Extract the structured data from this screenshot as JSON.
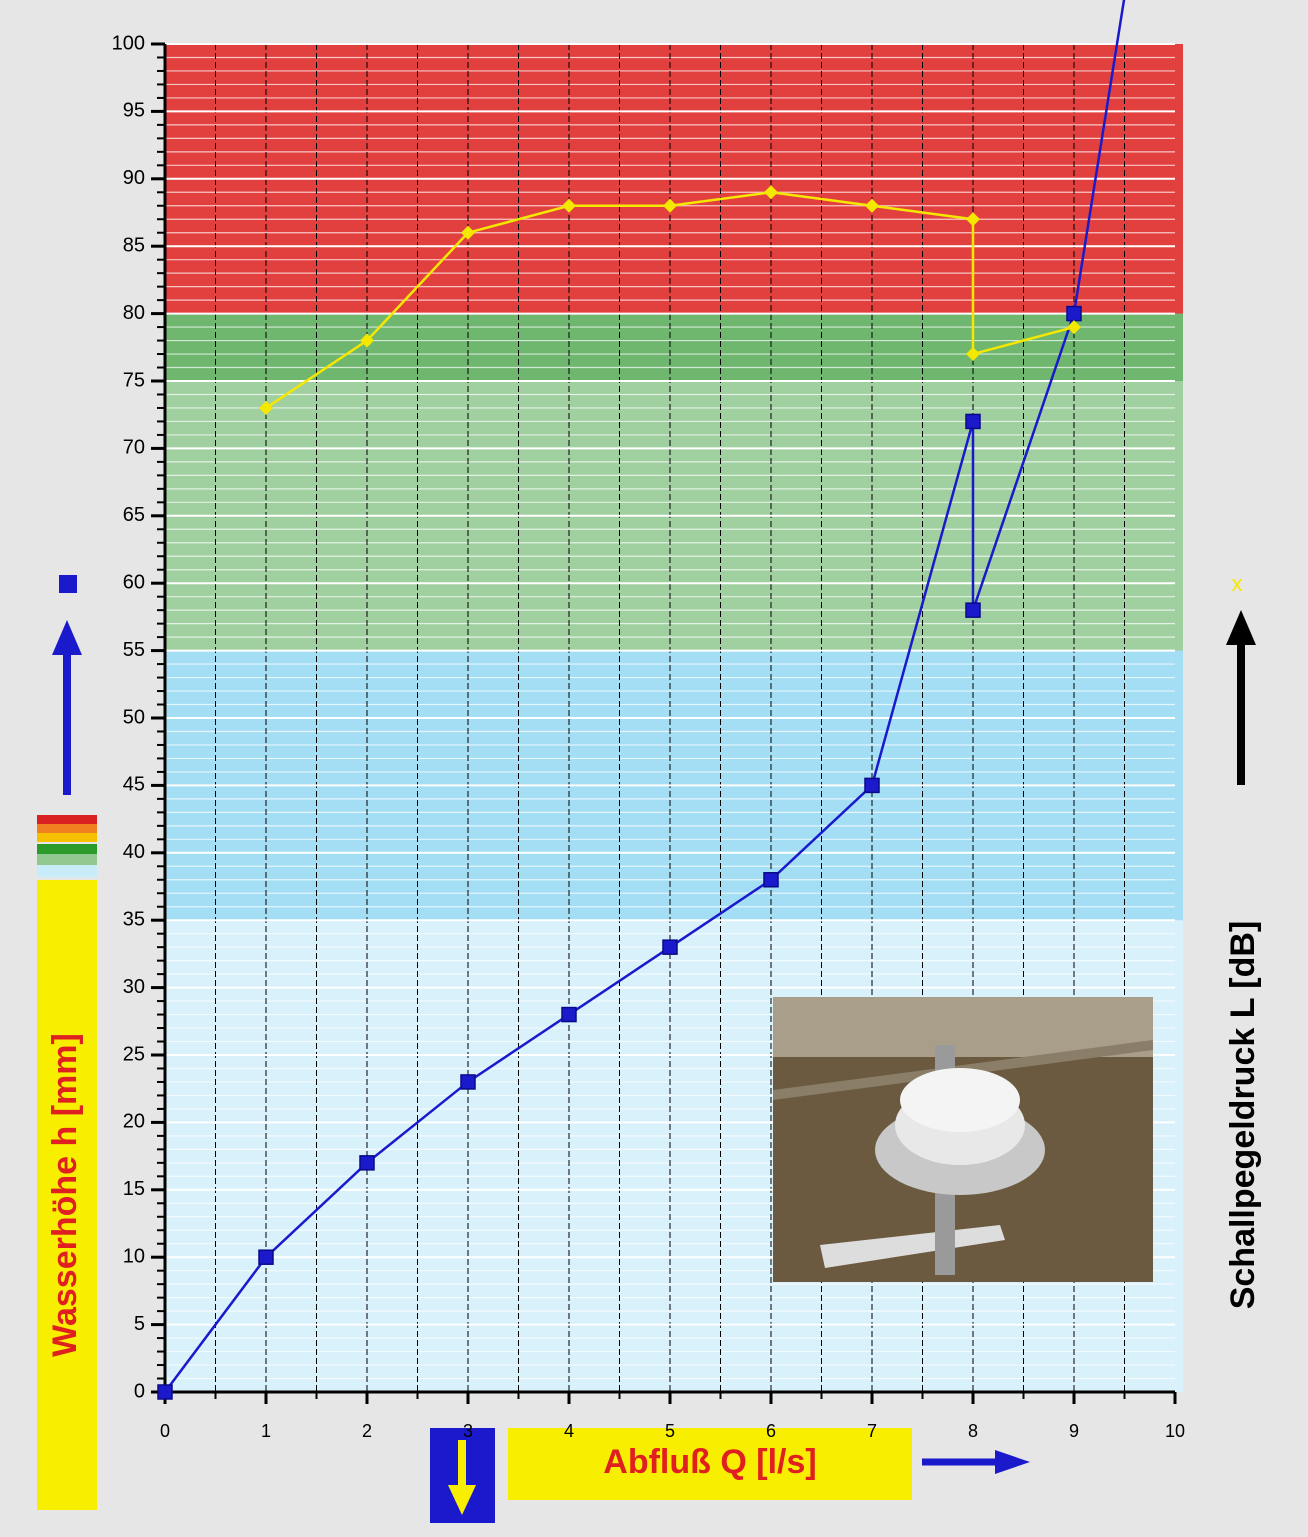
{
  "chart_data": {
    "type": "line",
    "xlabel": "Abfluß Q [l/s]",
    "ylabel": "Wasserhöhe h [mm]",
    "y2label": "Schallpegeldruck L [dB]",
    "y2_symbol": "x",
    "xlim": [
      0,
      10
    ],
    "ylim": [
      0,
      100
    ],
    "xticks": [
      0,
      1,
      2,
      3,
      4,
      5,
      6,
      7,
      8,
      9,
      10
    ],
    "yticks": [
      0,
      5,
      10,
      15,
      20,
      25,
      30,
      35,
      40,
      45,
      50,
      55,
      60,
      65,
      70,
      75,
      80,
      85,
      90,
      95,
      100
    ],
    "bands": [
      {
        "from": 0,
        "to": 35,
        "color": "#d8f1fb"
      },
      {
        "from": 35,
        "to": 55,
        "color": "#a3def5"
      },
      {
        "from": 55,
        "to": 75,
        "color": "#a0cfa0"
      },
      {
        "from": 75,
        "to": 80,
        "color": "#6fb66f"
      },
      {
        "from": 80,
        "to": 100,
        "color": "#e2403e"
      }
    ],
    "series": [
      {
        "name": "Wasserhöhe",
        "color": "#1a1acc",
        "marker": "square",
        "x": [
          0,
          1,
          2,
          3,
          4,
          5,
          6,
          7,
          8,
          8,
          9,
          10
        ],
        "values": [
          0,
          10,
          17,
          23,
          28,
          33,
          38,
          45,
          72,
          58,
          80,
          127
        ]
      },
      {
        "name": "Schallpegeldruck",
        "color": "#f5e800",
        "marker": "diamond",
        "x": [
          1,
          2,
          3,
          4,
          5,
          6,
          7,
          8,
          8,
          9
        ],
        "values": [
          73,
          78,
          86,
          88,
          88,
          89,
          88,
          87,
          77,
          79
        ]
      }
    ]
  }
}
